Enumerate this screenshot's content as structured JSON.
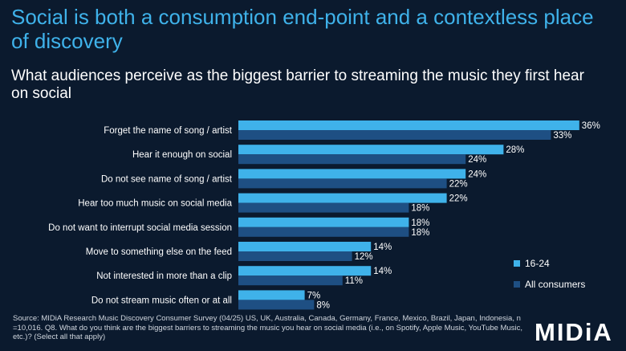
{
  "title": "Social is both a consumption end-point and a contextless place of discovery",
  "subtitle": "What audiences perceive as the biggest barrier to streaming the music they first hear on social",
  "colors": {
    "background": "#0b1a2e",
    "accent": "#3fb2ea",
    "series_16_24": "#3fb2ea",
    "series_all": "#1e4f83"
  },
  "chart_data": {
    "type": "bar",
    "orientation": "horizontal",
    "categories": [
      "Forget the name of song / artist",
      "Hear it enough on social",
      "Do not see name of song / artist",
      "Hear too much music on social media",
      "Do not want to interrupt social media session",
      "Move to something else on the feed",
      "Not interested in more than a clip",
      "Do not stream music often or at all"
    ],
    "series": [
      {
        "name": "16-24",
        "values": [
          36,
          28,
          24,
          22,
          18,
          14,
          14,
          7
        ]
      },
      {
        "name": "All consumers",
        "values": [
          33,
          24,
          22,
          18,
          18,
          12,
          11,
          8
        ]
      }
    ],
    "value_suffix": "%",
    "xlim": [
      0,
      36
    ],
    "grid": false,
    "legend_position": "right"
  },
  "legend": {
    "items": [
      "16-24",
      "All consumers"
    ]
  },
  "source": "Source: MIDiA Research Music Discovery Consumer Survey (04/25) US, UK, Australia, Canada, Germany, France, Mexico, Brazil, Japan, Indonesia, n =10,016. Q8. What do you think are the biggest barriers to streaming the music you hear on social media (i.e., on Spotify, Apple Music, YouTube Music, etc.)? (Select all that apply)",
  "logo_text": "MIDiA"
}
